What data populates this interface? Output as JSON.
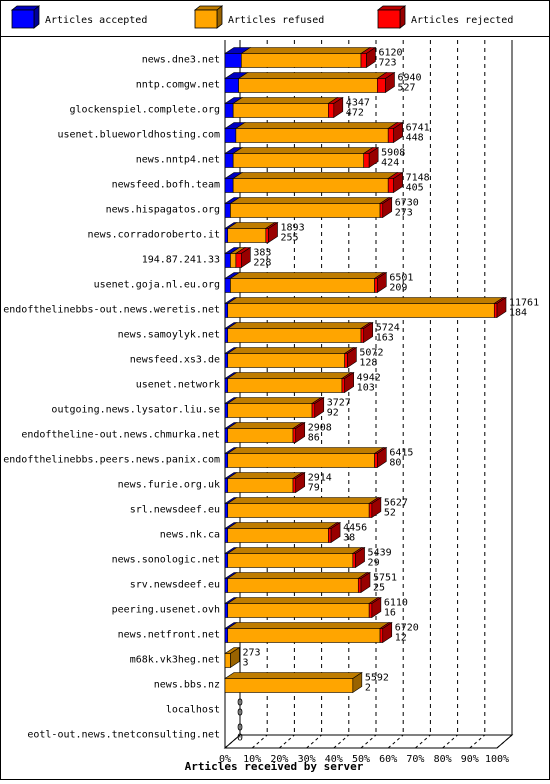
{
  "chart_data": {
    "type": "bar",
    "orientation": "horizontal",
    "stacked": true,
    "three_d": true,
    "title": "",
    "xlabel": "Articles received by server",
    "ylabel": "",
    "xlim": [
      0,
      100
    ],
    "x_unit": "%",
    "x_ticks": [
      "0%",
      "10%",
      "20%",
      "30%",
      "40%",
      "50%",
      "60%",
      "70%",
      "80%",
      "90%",
      "100%"
    ],
    "grid": "vertical dashed",
    "legend_position": "top",
    "legend": [
      {
        "name": "Articles accepted",
        "color": "#0000ff"
      },
      {
        "name": "Articles refused",
        "color": "#ffa500"
      },
      {
        "name": "Articles rejected",
        "color": "#ff0000"
      }
    ],
    "categories": [
      "news.dne3.net",
      "nntp.comgw.net",
      "glockenspiel.complete.org",
      "usenet.blueworldhosting.com",
      "news.nntp4.net",
      "newsfeed.bofh.team",
      "news.hispagatos.org",
      "news.corradoroberto.it",
      "194.87.241.33",
      "usenet.goja.nl.eu.org",
      "endofthelinebbs-out.news.weretis.net",
      "news.samoylyk.net",
      "newsfeed.xs3.de",
      "usenet.network",
      "outgoing.news.lysator.liu.se",
      "endoftheline-out.news.chmurka.net",
      "endofthelinebbs.peers.news.panix.com",
      "news.furie.org.uk",
      "srl.newsdeef.eu",
      "news.nk.ca",
      "news.sonologic.net",
      "srv.newsdeef.eu",
      "peering.usenet.ovh",
      "news.netfront.net",
      "m68k.vk3heg.net",
      "news.bbs.nz",
      "localhost",
      "eotl-out.news.tnetconsulting.net"
    ],
    "series": [
      {
        "name": "Articles accepted",
        "values": [
          6,
          5,
          3,
          4,
          3,
          3,
          2,
          1,
          2,
          2,
          1,
          1,
          1,
          1,
          1,
          1,
          1,
          1,
          1,
          1,
          1,
          1,
          1,
          1,
          0,
          0,
          0,
          0
        ]
      },
      {
        "name": "Articles refused",
        "values": [
          44,
          51,
          35,
          56,
          48,
          57,
          55,
          14,
          2,
          53,
          98,
          49,
          43,
          42,
          31,
          24,
          54,
          24,
          52,
          37,
          46,
          48,
          52,
          56,
          2,
          47,
          0,
          0
        ]
      },
      {
        "name": "Articles rejected",
        "values": [
          2,
          3,
          2,
          2,
          2,
          2,
          1,
          1,
          2,
          1,
          1,
          1,
          1,
          1,
          1,
          1,
          1,
          1,
          1,
          1,
          1,
          1,
          1,
          1,
          0,
          0,
          0,
          0
        ]
      }
    ],
    "bar_label_top": [
      "6120",
      "6940",
      "4347",
      "6741",
      "5908",
      "7148",
      "6730",
      "1893",
      "383",
      "6501",
      "11761",
      "5724",
      "5072",
      "4942",
      "3727",
      "2908",
      "6415",
      "2914",
      "5627",
      "4456",
      "5439",
      "5751",
      "6110",
      "6720",
      "273",
      "5592",
      "0",
      "0"
    ],
    "bar_label_bottom": [
      "723",
      "527",
      "472",
      "448",
      "424",
      "405",
      "273",
      "255",
      "228",
      "209",
      "184",
      "163",
      "128",
      "103",
      "92",
      "86",
      "80",
      "79",
      "52",
      "38",
      "29",
      "25",
      "16",
      "12",
      "3",
      "2",
      "0",
      "0"
    ]
  }
}
